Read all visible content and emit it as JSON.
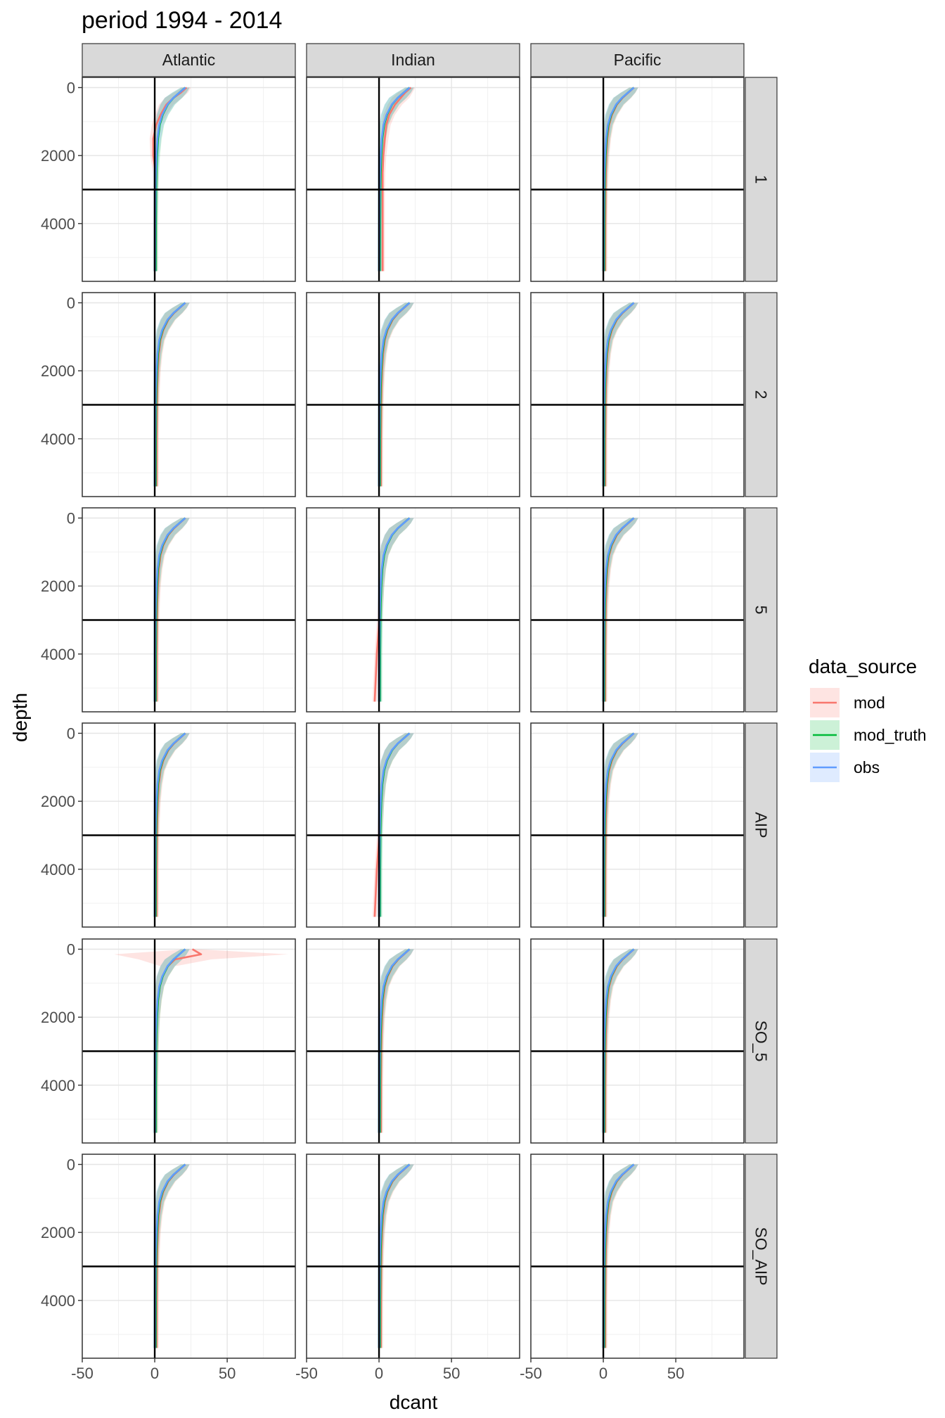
{
  "chart_data": {
    "type": "line",
    "title": "period 1994 - 2014",
    "xlabel": "dcant",
    "ylabel": "depth",
    "xlim": [
      -50,
      97
    ],
    "ylim": [
      5700,
      -300
    ],
    "y_reversed": true,
    "x_ticks": [
      -50,
      0,
      50
    ],
    "x_tick_labels": [
      "-50",
      "0",
      "50"
    ],
    "y_ticks": [
      0,
      2000,
      4000
    ],
    "y_tick_labels": [
      "0",
      "2000",
      "4000"
    ],
    "reference_lines": {
      "vertical_x": 0,
      "horizontal_y": 3000
    },
    "grid": true,
    "columns": [
      "Atlantic",
      "Indian",
      "Pacific"
    ],
    "rows": [
      "1",
      "2",
      "5",
      "AIP",
      "SO_5",
      "SO_AIP"
    ],
    "legend": {
      "title": "data_source",
      "position": "right",
      "entries": [
        {
          "name": "mod",
          "color": "#F8766D"
        },
        {
          "name": "mod_truth",
          "color": "#00BA38"
        },
        {
          "name": "obs",
          "color": "#619CFF"
        }
      ]
    },
    "depth_levels": [
      0,
      150,
      300,
      500,
      800,
      1100,
      1500,
      2000,
      2500,
      3000,
      4000,
      5400
    ],
    "base_profile": [
      21,
      17,
      13,
      9,
      5.5,
      3.5,
      2.3,
      1.6,
      1.2,
      1.0,
      0.8,
      0.7
    ],
    "facet_profiles": {
      "Atlantic|1": {
        "mod": [
          22,
          18,
          13,
          8,
          4,
          1,
          -1,
          -1,
          0.5,
          0.5,
          0.5,
          0.5
        ]
      },
      "Indian|1": {
        "mod": [
          22,
          18,
          15,
          11,
          7,
          5,
          4,
          3,
          2.5,
          2.5,
          2.5,
          2.5
        ]
      },
      "Atlantic|SO_5": {
        "mod": [
          26,
          32,
          14,
          9,
          5.5,
          3.5,
          2.3,
          1.6,
          1.2,
          1.0,
          0.8,
          0.7
        ]
      },
      "Indian|5": {
        "mod": [
          21,
          17,
          13,
          9,
          5.5,
          3.5,
          2.3,
          1.6,
          1.0,
          0.2,
          -1.5,
          -3
        ]
      },
      "Indian|AIP": {
        "mod": [
          21,
          17,
          13,
          9,
          5.5,
          3.5,
          2.3,
          1.6,
          1.0,
          0.2,
          -1.5,
          -3
        ]
      }
    },
    "series": [
      {
        "name": "mod",
        "color": "#F8766D"
      },
      {
        "name": "mod_truth",
        "color": "#00BA38"
      },
      {
        "name": "obs",
        "color": "#619CFF"
      }
    ]
  }
}
